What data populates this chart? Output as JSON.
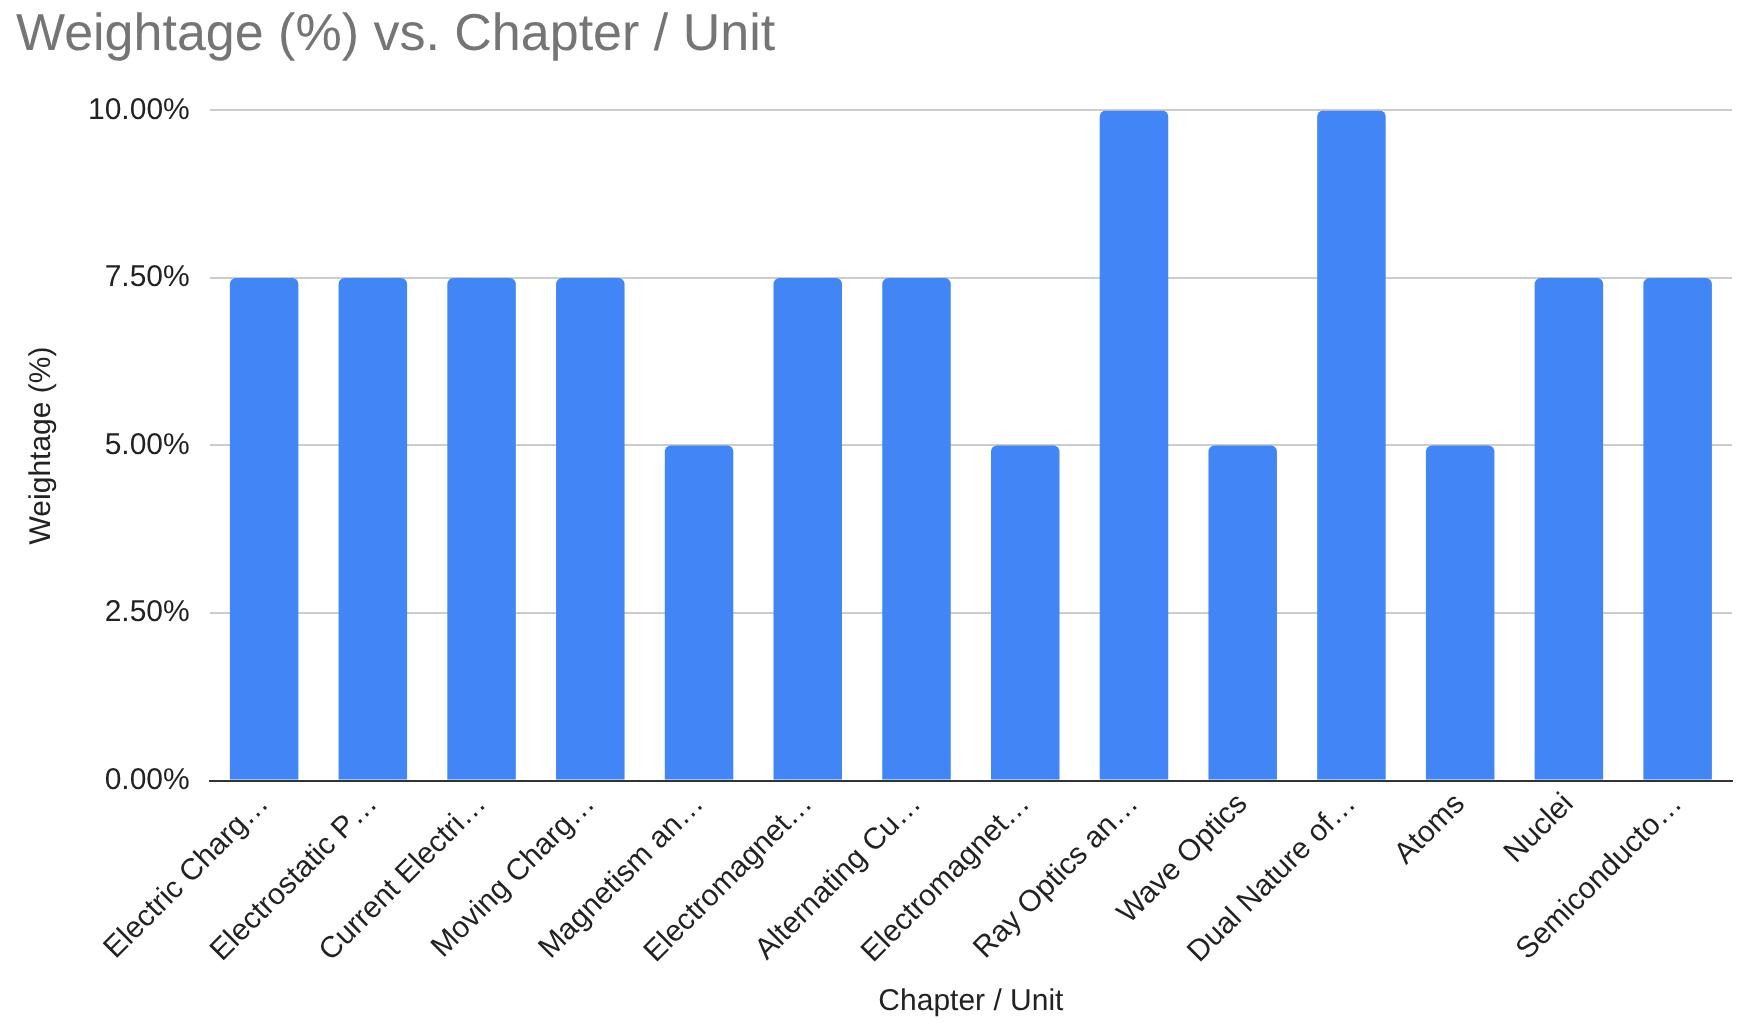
{
  "chart_data": {
    "type": "bar",
    "title": "Weightage (%) vs. Chapter / Unit",
    "xlabel": "Chapter / Unit",
    "ylabel": "Weightage (%)",
    "categories": [
      "Electric Charg…",
      "Electrostatic P…",
      "Current Electri…",
      "Moving Charg…",
      "Magnetism an…",
      "Electromagnet…",
      "Alternating Cu…",
      "Electromagnet…",
      "Ray Optics an…",
      "Wave Optics",
      "Dual Nature of…",
      "Atoms",
      "Nuclei",
      "Semiconducto…"
    ],
    "values": [
      7.5,
      7.5,
      7.5,
      7.5,
      5,
      7.5,
      7.5,
      5,
      10,
      5,
      10,
      5,
      7.5,
      7.5
    ],
    "color": "#4285f4",
    "ylim": [
      0,
      10
    ],
    "yticks": [
      {
        "value": 0,
        "label": "0.00%"
      },
      {
        "value": 2.5,
        "label": "2.50%"
      },
      {
        "value": 5,
        "label": "5.00%"
      },
      {
        "value": 7.5,
        "label": "7.50%"
      },
      {
        "value": 10,
        "label": "10.00%"
      }
    ],
    "grid": "y",
    "legend": false
  }
}
